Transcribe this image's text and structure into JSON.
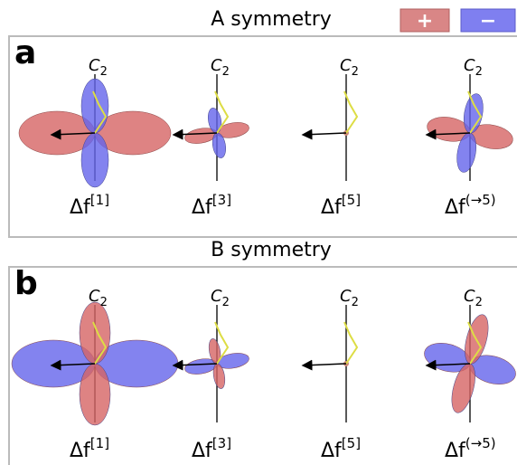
{
  "legend": {
    "plus": "+",
    "minus": "−"
  },
  "panels": [
    {
      "title": "A symmetry",
      "label": "a",
      "items": [
        {
          "axis": "C",
          "axis_sub": "2",
          "caption": "Δf",
          "caption_sup": "[1]"
        },
        {
          "axis": "C",
          "axis_sub": "2",
          "caption": "Δf",
          "caption_sup": "[3]"
        },
        {
          "axis": "C",
          "axis_sub": "2",
          "caption": "Δf",
          "caption_sup": "[5]"
        },
        {
          "axis": "C",
          "axis_sub": "2",
          "caption": "Δf",
          "caption_sup": "(→5)"
        }
      ]
    },
    {
      "title": "B symmetry",
      "label": "b",
      "items": [
        {
          "axis": "C",
          "axis_sub": "2",
          "caption": "Δf",
          "caption_sup": "[1]"
        },
        {
          "axis": "C",
          "axis_sub": "2",
          "caption": "Δf",
          "caption_sup": "[3]"
        },
        {
          "axis": "C",
          "axis_sub": "2",
          "caption": "Δf",
          "caption_sup": "[5]"
        },
        {
          "axis": "C",
          "axis_sub": "2",
          "caption": "Δf",
          "caption_sup": "(→5)"
        }
      ]
    }
  ]
}
